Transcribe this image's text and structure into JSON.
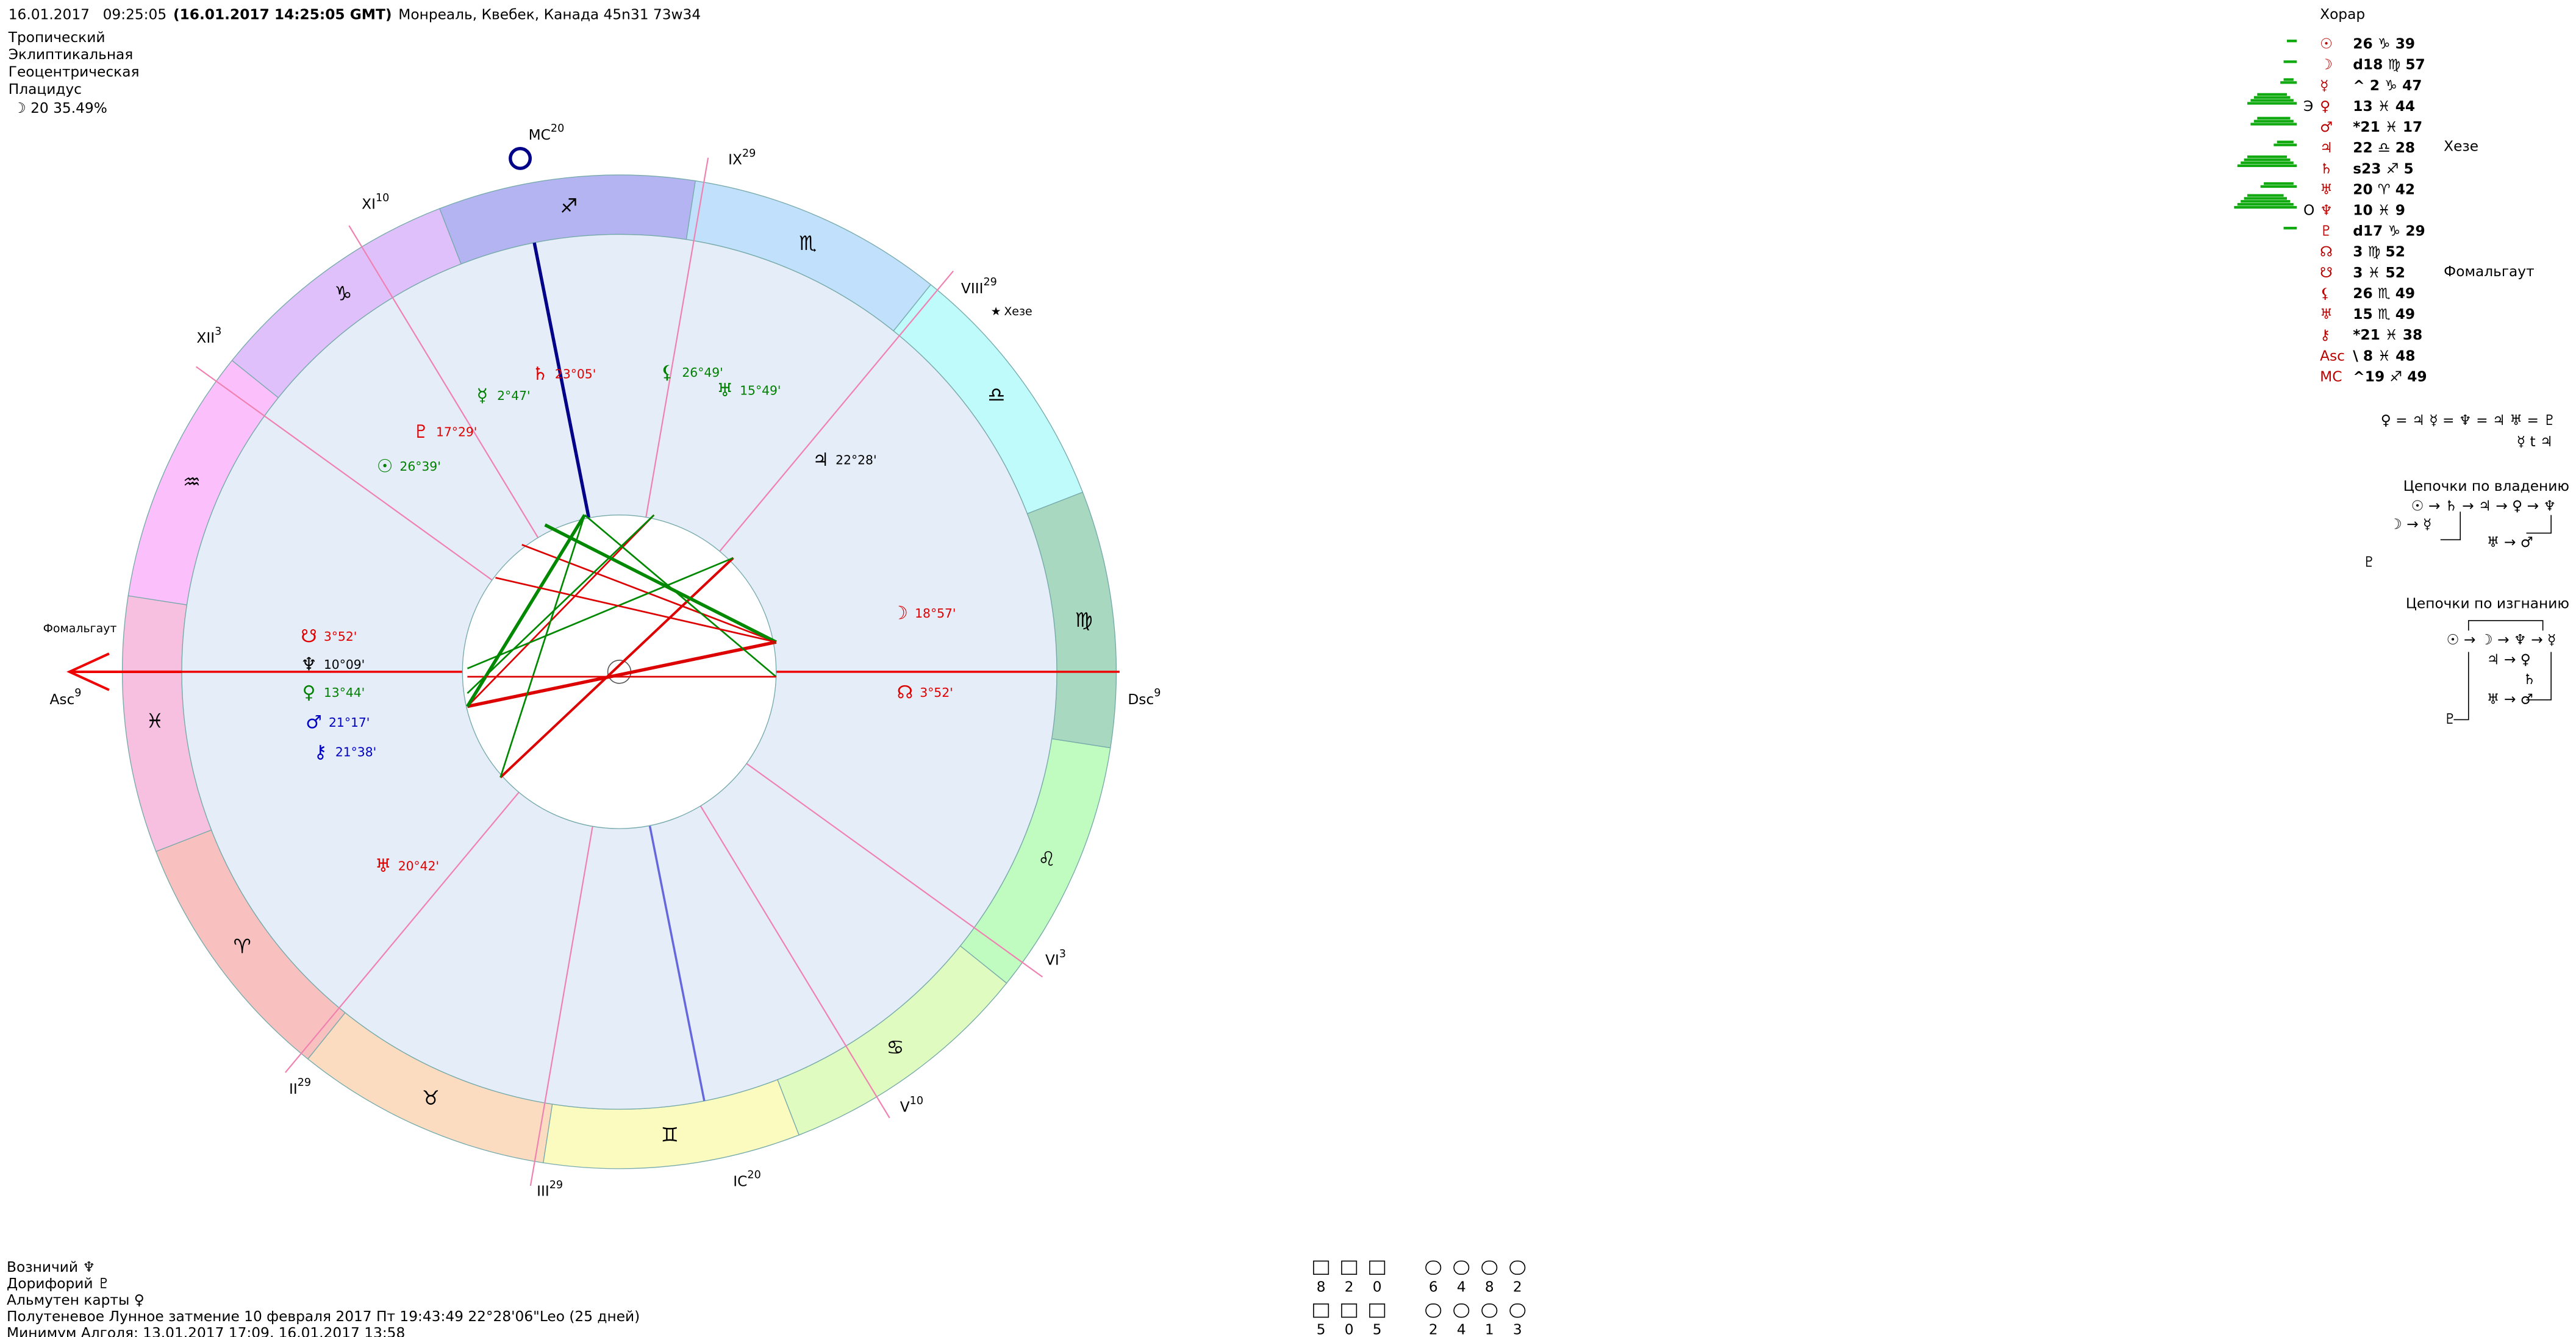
{
  "header": {
    "date": "16.01.2017",
    "time": "09:25:05",
    "gmt": "(16.01.2017  14:25:05 GMT)",
    "place": "Монреаль, Квебек, Канада 45n31  73w34"
  },
  "settings": [
    "Тропический",
    "Эклиптикальная",
    "Геоцентрическая",
    "Плацидус"
  ],
  "moon_phase": "☽  20 35.49%",
  "wheel": {
    "signs": [
      "♈",
      "♉",
      "♊",
      "♋",
      "♌",
      "♍",
      "♎",
      "♏",
      "♐",
      "♑",
      "♒",
      "♓"
    ],
    "sign_colors": [
      "#f9c0c0",
      "#fcdcc0",
      "#fbfbc0",
      "#e0fbc0",
      "#c0fbc0",
      "#a8d8c0",
      "#c0fbfb",
      "#c0e0fb",
      "#b4b4f2",
      "#e0c0fb",
      "#fbc0fb",
      "#f8c0e0"
    ],
    "houses": [
      {
        "name": "Asc",
        "deg": "9"
      },
      {
        "name": "II",
        "deg": "29"
      },
      {
        "name": "III",
        "deg": "29"
      },
      {
        "name": "IC",
        "deg": "20"
      },
      {
        "name": "V",
        "deg": "10"
      },
      {
        "name": "VI",
        "deg": "3"
      },
      {
        "name": "Dsc",
        "deg": "9"
      },
      {
        "name": "VIII",
        "deg": "29"
      },
      {
        "name": "IX",
        "deg": "29"
      },
      {
        "name": "MC",
        "deg": "20"
      },
      {
        "name": "XI",
        "deg": "10"
      },
      {
        "name": "XII",
        "deg": "3"
      }
    ],
    "planets": [
      {
        "glyph": "♄",
        "text": "23°05'",
        "color": "#e00000"
      },
      {
        "glyph": "⚸",
        "text": "26°49'",
        "color": "#008000"
      },
      {
        "glyph": "☿",
        "text": "2°47'",
        "color": "#008000"
      },
      {
        "glyph": "♅",
        "text": "15°49'",
        "color": "#008000"
      },
      {
        "glyph": "♇",
        "text": "17°29'",
        "color": "#e00000"
      },
      {
        "glyph": "☉",
        "text": "26°39'",
        "color": "#008000"
      },
      {
        "glyph": "♃",
        "text": "22°28'",
        "color": "#000000"
      },
      {
        "glyph": "☽",
        "text": "18°57'",
        "color": "#e00000"
      },
      {
        "glyph": "☊",
        "text": "3°52'",
        "color": "#e00000"
      },
      {
        "glyph": "☋",
        "text": "3°52'",
        "color": "#e00000"
      },
      {
        "glyph": "♆",
        "text": "10°09'",
        "color": "#000000"
      },
      {
        "glyph": "♀",
        "text": "13°44'",
        "color": "#008000"
      },
      {
        "glyph": "♂",
        "text": "21°17'",
        "color": "#0000c0"
      },
      {
        "glyph": "⚷",
        "text": "21°38'",
        "color": "#0000c0"
      },
      {
        "glyph": "♅",
        "text": "20°42'",
        "color": "#e00000"
      }
    ],
    "stars": [
      "Хезе",
      "Фомальгаут"
    ]
  },
  "horar": {
    "title": "Хорар",
    "rows": [
      {
        "glyph": "☉",
        "text": "26 ♑ 39"
      },
      {
        "glyph": "☽",
        "text": "d18 ♍ 57"
      },
      {
        "glyph": "☿",
        "text": "^ 2 ♑ 47"
      },
      {
        "glyph": "♀",
        "text": "13 ♓ 44"
      },
      {
        "glyph": "♂",
        "text": "*21 ♓ 17"
      },
      {
        "glyph": "♃",
        "text": "22 ♎ 28"
      },
      {
        "glyph": "♄",
        "text": "s23 ♐ 5"
      },
      {
        "glyph": "♅",
        "text": "20 ♈ 42"
      },
      {
        "glyph": "♆",
        "text": "10 ♓ 9"
      },
      {
        "glyph": "♇",
        "text": "d17 ♑ 29"
      },
      {
        "glyph": "☊",
        "text": "3 ♍ 52"
      },
      {
        "glyph": "☋",
        "text": "3 ♓ 52"
      },
      {
        "glyph": "⚸",
        "text": "26 ♏ 49"
      },
      {
        "glyph": "♅",
        "text": "15 ♏ 49"
      },
      {
        "glyph": "⚷",
        "text": "*21 ♓ 38"
      },
      {
        "glyph": "Asc",
        "text": "\\ 8 ♓ 48"
      },
      {
        "glyph": "MC",
        "text": "^19 ♐ 49"
      }
    ],
    "marks": [
      "Э",
      "O"
    ],
    "notes": [
      "Хезе",
      "Фомальгаут"
    ]
  },
  "relations": [
    "♀ = ♃  ☿ = ♆ = ♃  ♅ = ♇",
    "☿ t ♃"
  ],
  "chains_owner": {
    "title": "Цепочки по владению",
    "lines": [
      "☉ → ♄ → ♃ → ♀ → ♆",
      "☽ → ☿",
      "♅ → ♂",
      "♇"
    ]
  },
  "chains_exile": {
    "title": "Цепочки по изгнанию",
    "lines": [
      "☉ → ☽ → ♆ → ☿",
      "♃ → ♀",
      "♄",
      "♅ → ♂",
      "♇"
    ]
  },
  "footer": [
    "Возничий ♆",
    "Дорифорий ♇",
    "Альмутен карты ♀",
    "Полутеневое Лунное затмение 10 февраля 2017 Пт 19:43:49 22°28'06\"Leo (25 дней)",
    "Минимум Алголя: 13.01.2017 17:09,  16.01.2017 13:58"
  ],
  "stats": {
    "row1a": [
      "8",
      "2",
      "0"
    ],
    "row1b": [
      "6",
      "4",
      "8",
      "2"
    ],
    "row2a": [
      "5",
      "0",
      "5"
    ],
    "row2b": [
      "2",
      "4",
      "1",
      "3"
    ]
  }
}
